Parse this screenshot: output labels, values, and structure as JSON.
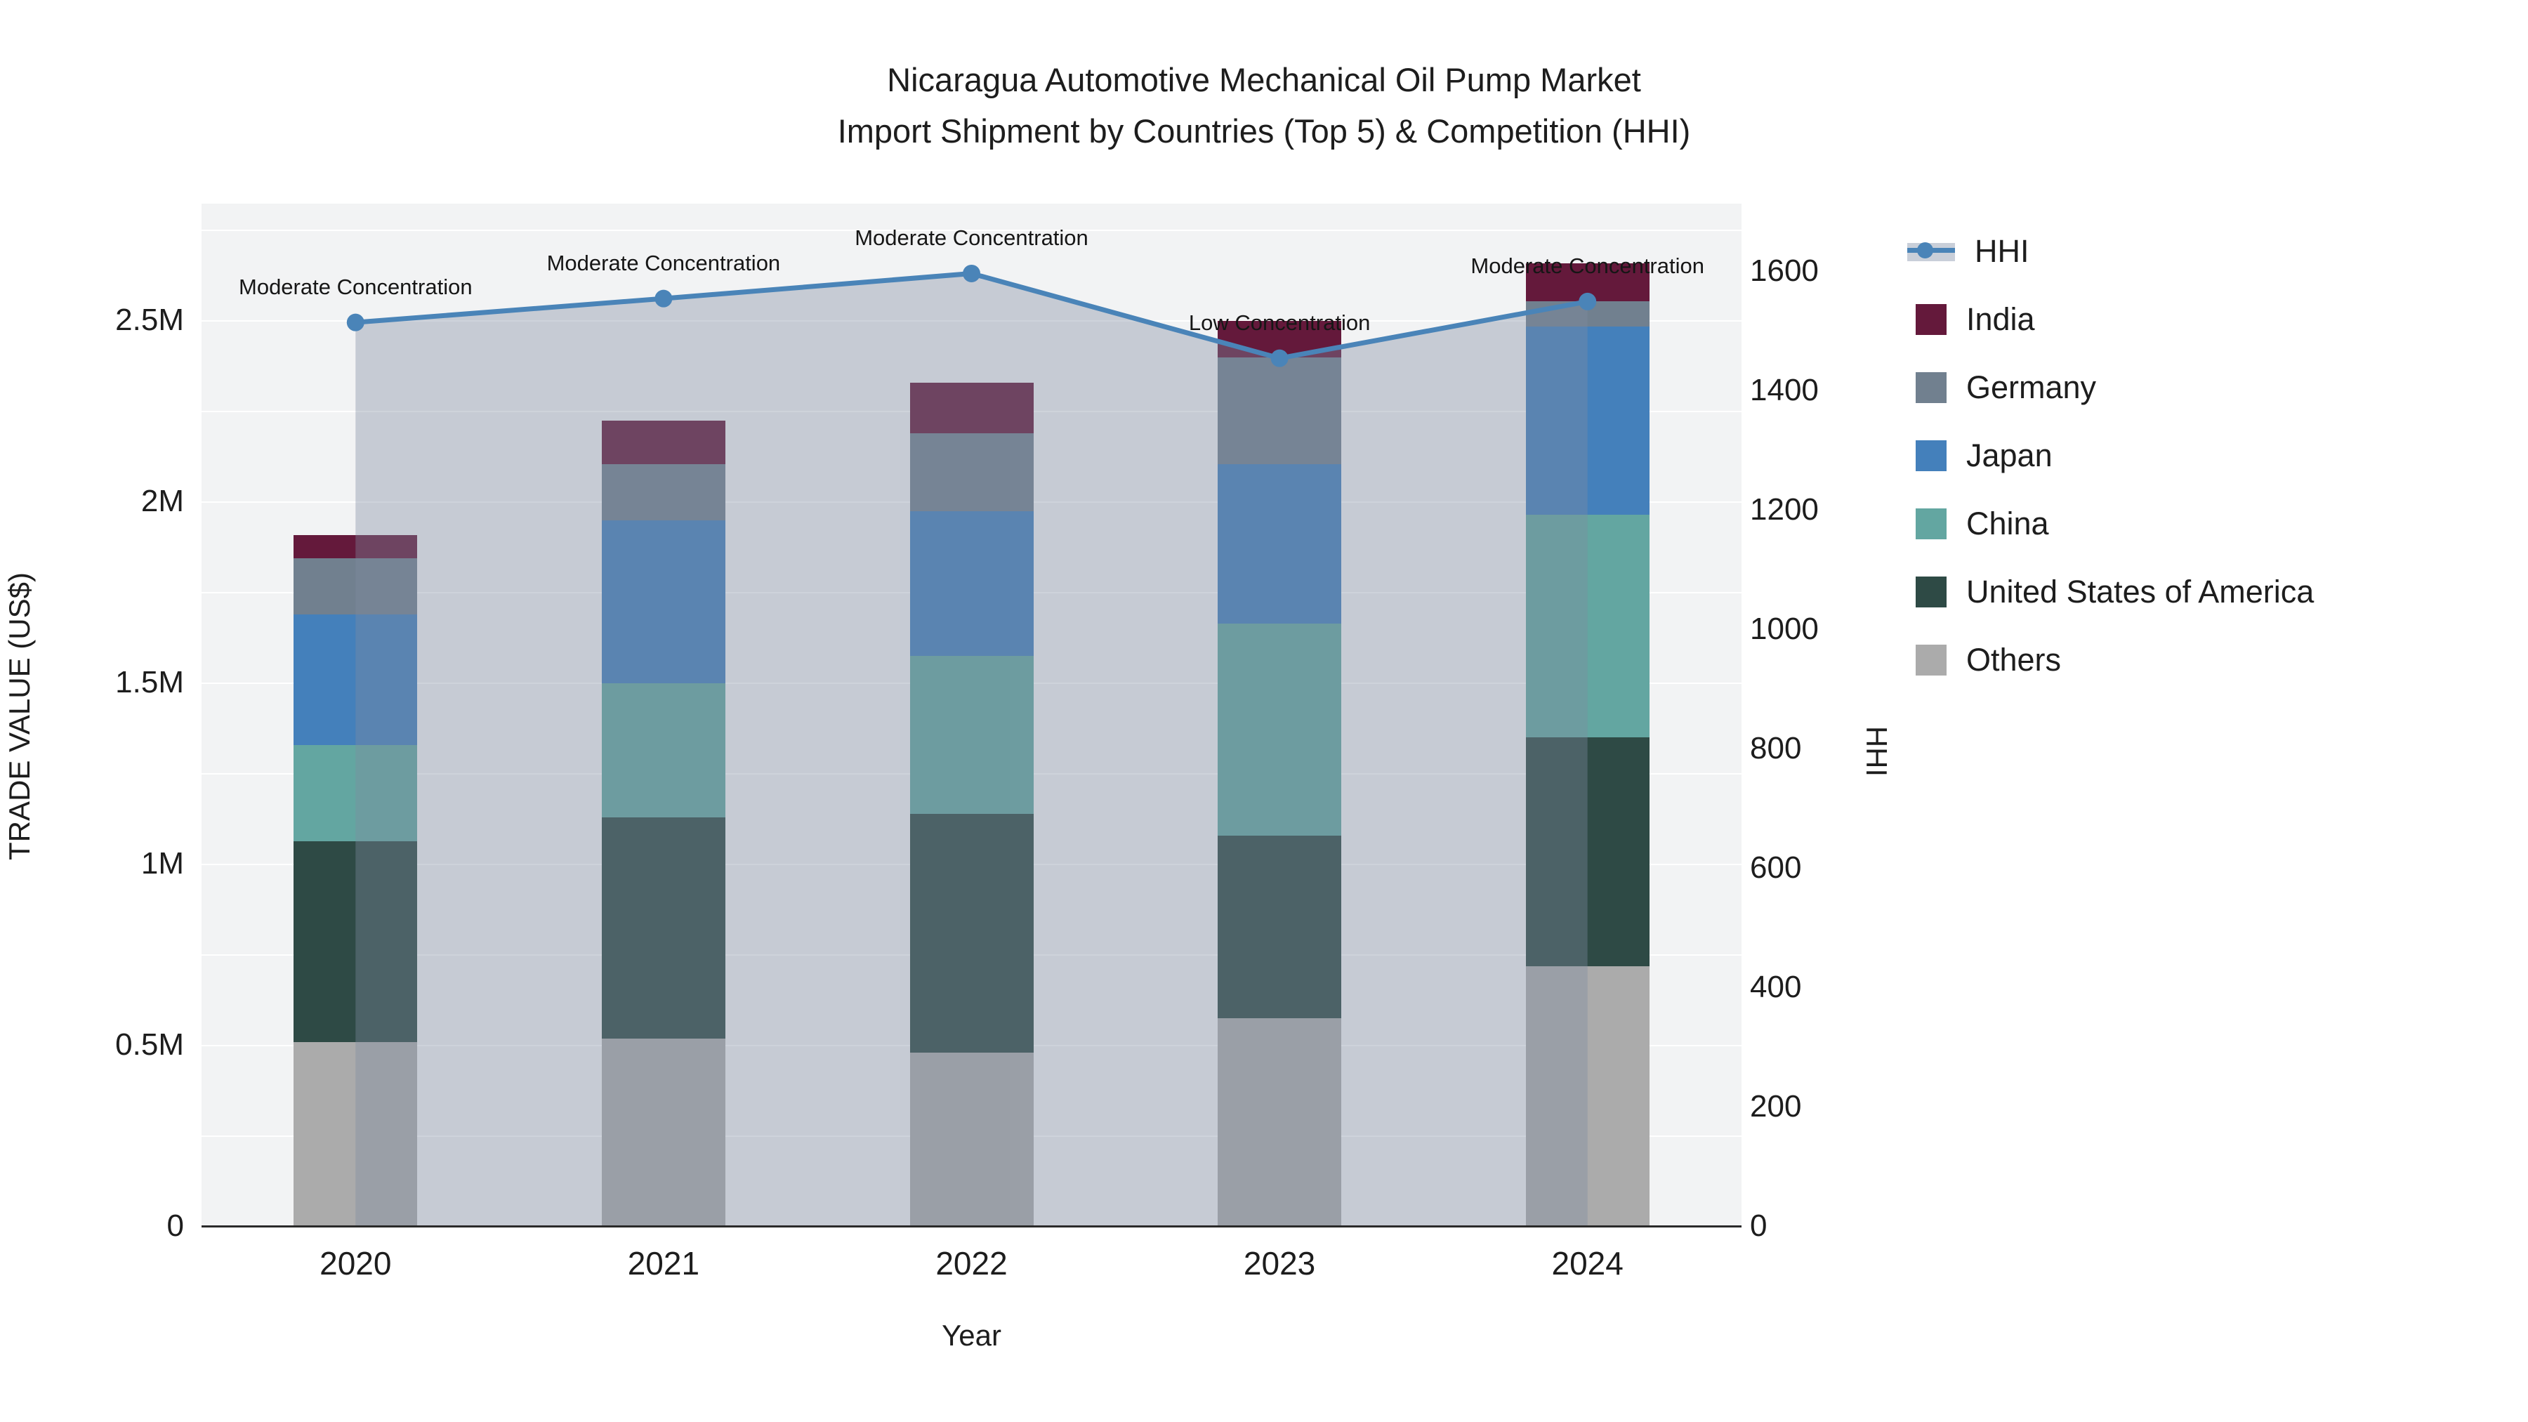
{
  "title": {
    "line1": "Nicaragua Automotive Mechanical Oil Pump Market",
    "line2": "Import Shipment by Countries (Top 5) & Competition (HHI)"
  },
  "axes": {
    "x": {
      "title": "Year"
    },
    "y_left": {
      "title": "TRADE VALUE (US$)",
      "tick_labels": [
        "0",
        "0.5M",
        "1M",
        "1.5M",
        "2M",
        "2.5M"
      ],
      "tick_values_musd": [
        0,
        0.5,
        1,
        1.5,
        2,
        2.5
      ],
      "range_musd": [
        0,
        2.824
      ],
      "minor_grid_step_musd": 0.25
    },
    "y_right": {
      "title": "HHI",
      "tick_labels": [
        "0",
        "200",
        "400",
        "600",
        "800",
        "1000",
        "1200",
        "1400",
        "1600"
      ],
      "tick_values": [
        0,
        200,
        400,
        600,
        800,
        1000,
        1200,
        1400,
        1600
      ],
      "range": [
        0,
        1714
      ]
    }
  },
  "legend": {
    "items": [
      {
        "label": "HHI",
        "marker": "line",
        "color": "#4A84B8"
      },
      {
        "label": "India",
        "marker": "square",
        "color": "#64193B"
      },
      {
        "label": "Germany",
        "marker": "square",
        "color": "#71808F"
      },
      {
        "label": "Japan",
        "marker": "square",
        "color": "#4480BB"
      },
      {
        "label": "China",
        "marker": "square",
        "color": "#63A6A1"
      },
      {
        "label": "United States of America",
        "marker": "square",
        "color": "#2E4A45"
      },
      {
        "label": "Others",
        "marker": "square",
        "color": "#ABABAB"
      }
    ]
  },
  "chart_data": {
    "type": "bar",
    "subtype": "stacked-bars-with-line-overlay",
    "title": "Nicaragua Automotive Mechanical Oil Pump Market — Import Shipment by Countries (Top 5) & Competition (HHI)",
    "xlabel": "Year",
    "ylabel": "TRADE VALUE (US$)",
    "y2label": "HHI",
    "categories": [
      "2020",
      "2021",
      "2022",
      "2023",
      "2024"
    ],
    "bar_unit": "million US$",
    "stack_order_bottom_to_top": [
      "Others",
      "United States of America",
      "China",
      "Japan",
      "Germany",
      "India"
    ],
    "series": [
      {
        "name": "Others",
        "color": "#ABABAB",
        "values": [
          0.51,
          0.52,
          0.48,
          0.575,
          0.72
        ]
      },
      {
        "name": "United States of America",
        "color": "#2E4A45",
        "values": [
          0.555,
          0.61,
          0.66,
          0.505,
          0.63
        ]
      },
      {
        "name": "China",
        "color": "#63A6A1",
        "values": [
          0.265,
          0.37,
          0.435,
          0.585,
          0.615
        ]
      },
      {
        "name": "Japan",
        "color": "#4480BB",
        "values": [
          0.36,
          0.45,
          0.4,
          0.44,
          0.52
        ]
      },
      {
        "name": "Germany",
        "color": "#71808F",
        "values": [
          0.155,
          0.155,
          0.215,
          0.295,
          0.07
        ]
      },
      {
        "name": "India",
        "color": "#64193B",
        "values": [
          0.065,
          0.12,
          0.14,
          0.1,
          0.105
        ]
      }
    ],
    "totals_musd": [
      1.91,
      2.225,
      2.33,
      2.5,
      2.66
    ],
    "line_series": {
      "name": "HHI",
      "axis": "right",
      "color": "#4A84B8",
      "fill_to_zero_color": "rgba(125,140,160,0.38)",
      "values": [
        1515,
        1555,
        1597,
        1455,
        1550
      ]
    },
    "annotations": [
      {
        "category": "2020",
        "text": "Moderate Concentration"
      },
      {
        "category": "2021",
        "text": "Moderate Concentration"
      },
      {
        "category": "2022",
        "text": "Moderate Concentration"
      },
      {
        "category": "2023",
        "text": "Low Concentration"
      },
      {
        "category": "2024",
        "text": "Moderate Concentration"
      }
    ],
    "legend_position": "right",
    "grid": "horizontal-only"
  },
  "colors": {
    "plot_bg": "#F2F3F4",
    "gridline": "#FFFFFF",
    "axis_line": "#2A2A2A",
    "text": "#1D1D1D"
  }
}
